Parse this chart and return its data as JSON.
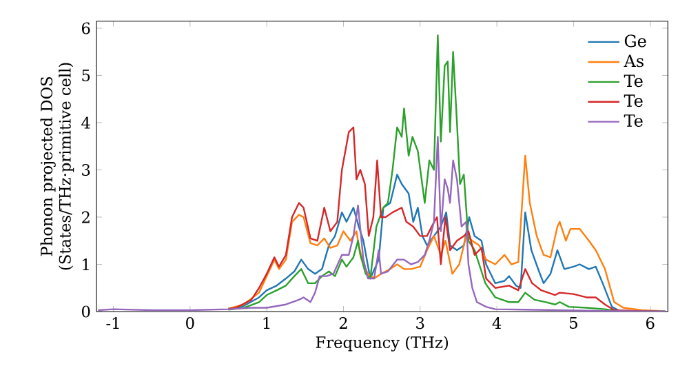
{
  "chart_data": {
    "type": "line",
    "xlabel": "Frequency (THz)",
    "ylabel": "Phonon projected DOS\n(States/THz·primitive cell)",
    "xlim": [
      -1.22,
      6.23
    ],
    "ylim": [
      0,
      6.15
    ],
    "xticks": [
      -1,
      0,
      1,
      2,
      3,
      4,
      5,
      6
    ],
    "yticks": [
      0,
      1,
      2,
      3,
      4,
      5,
      6
    ],
    "legend": "top right",
    "series": [
      {
        "name": "Ge",
        "color": "#1f77b4",
        "x": [
          0.5,
          0.7,
          0.9,
          1.0,
          1.13,
          1.25,
          1.36,
          1.45,
          1.54,
          1.63,
          1.72,
          1.81,
          1.89,
          1.98,
          2.04,
          2.13,
          2.2,
          2.26,
          2.35,
          2.46,
          2.52,
          2.61,
          2.7,
          2.76,
          2.85,
          2.91,
          2.97,
          3.03,
          3.09,
          3.18,
          3.27,
          3.34,
          3.39,
          3.48,
          3.57,
          3.64,
          3.71,
          3.8,
          3.86,
          3.98,
          4.1,
          4.16,
          4.25,
          4.31,
          4.37,
          4.45,
          4.55,
          4.61,
          4.7,
          4.79,
          4.88,
          5.0,
          5.08,
          5.2,
          5.29,
          5.38,
          5.5,
          5.59,
          5.8,
          6.2
        ],
        "values": [
          0.06,
          0.12,
          0.3,
          0.45,
          0.55,
          0.7,
          0.85,
          1.1,
          0.9,
          0.8,
          0.9,
          1.4,
          1.6,
          2.1,
          1.9,
          2.2,
          1.8,
          1.5,
          0.7,
          1.1,
          2.2,
          2.3,
          2.9,
          2.7,
          2.5,
          1.9,
          2.2,
          1.6,
          1.4,
          1.6,
          1.8,
          2.1,
          1.4,
          1.3,
          1.4,
          2.0,
          1.6,
          1.5,
          1.0,
          0.6,
          0.65,
          0.75,
          0.55,
          0.5,
          2.1,
          1.3,
          0.85,
          0.6,
          0.8,
          1.3,
          0.9,
          0.95,
          1.0,
          0.9,
          0.95,
          0.6,
          0.1,
          0.02,
          0.01,
          0.0
        ]
      },
      {
        "name": "As",
        "color": "#ff7f0e",
        "x": [
          0.5,
          0.7,
          0.9,
          1.0,
          1.1,
          1.16,
          1.25,
          1.33,
          1.42,
          1.48,
          1.57,
          1.66,
          1.75,
          1.83,
          1.92,
          2.0,
          2.09,
          2.17,
          2.2,
          2.26,
          2.32,
          2.4,
          2.49,
          2.61,
          2.7,
          2.79,
          2.88,
          3.0,
          3.09,
          3.18,
          3.27,
          3.33,
          3.42,
          3.51,
          3.6,
          3.68,
          3.77,
          3.86,
          3.98,
          4.1,
          4.19,
          4.28,
          4.37,
          4.43,
          4.52,
          4.61,
          4.7,
          4.79,
          4.82,
          4.9,
          4.96,
          5.08,
          5.2,
          5.29,
          5.41,
          5.53,
          5.65,
          5.89,
          6.12
        ],
        "values": [
          0.06,
          0.15,
          0.4,
          0.75,
          1.1,
          0.9,
          1.1,
          1.9,
          2.05,
          2.0,
          1.45,
          1.4,
          1.55,
          1.35,
          1.4,
          1.7,
          1.5,
          1.7,
          1.4,
          1.0,
          0.8,
          0.7,
          0.8,
          0.9,
          1.0,
          0.9,
          0.9,
          0.95,
          1.3,
          1.6,
          1.2,
          1.5,
          0.8,
          1.0,
          1.6,
          1.5,
          1.4,
          1.1,
          1.0,
          1.2,
          1.0,
          1.05,
          3.3,
          2.3,
          1.6,
          1.2,
          1.15,
          1.8,
          1.9,
          1.5,
          1.75,
          1.75,
          1.5,
          1.3,
          0.9,
          0.2,
          0.08,
          0.03,
          0.01
        ]
      },
      {
        "name": "Te",
        "color": "#2ca02c",
        "x": [
          0.5,
          0.7,
          0.9,
          1.0,
          1.13,
          1.25,
          1.36,
          1.45,
          1.54,
          1.63,
          1.72,
          1.81,
          1.89,
          1.98,
          2.04,
          2.13,
          2.19,
          2.22,
          2.29,
          2.35,
          2.43,
          2.52,
          2.58,
          2.64,
          2.7,
          2.76,
          2.79,
          2.85,
          2.9,
          2.97,
          3.06,
          3.12,
          3.18,
          3.23,
          3.27,
          3.32,
          3.36,
          3.39,
          3.43,
          3.48,
          3.52,
          3.57,
          3.63,
          3.71,
          3.77,
          3.85,
          3.98,
          4.16,
          4.28,
          4.37,
          4.49,
          4.64,
          4.76,
          4.82,
          4.94,
          5.17,
          5.41,
          5.53,
          5.8,
          6.2
        ],
        "values": [
          0.04,
          0.08,
          0.2,
          0.35,
          0.45,
          0.55,
          0.75,
          0.9,
          0.6,
          0.6,
          0.75,
          0.85,
          0.75,
          1.1,
          0.95,
          1.15,
          1.5,
          1.2,
          0.8,
          0.7,
          1.8,
          2.2,
          2.3,
          3.0,
          3.9,
          3.7,
          4.3,
          3.3,
          3.7,
          3.4,
          2.3,
          3.2,
          3.0,
          5.85,
          3.6,
          5.2,
          5.3,
          3.8,
          5.5,
          4.0,
          2.7,
          2.9,
          1.5,
          1.3,
          1.0,
          0.6,
          0.3,
          0.2,
          0.2,
          0.4,
          0.25,
          0.2,
          0.15,
          0.2,
          0.1,
          0.08,
          0.05,
          0.02,
          0.01,
          0.0
        ]
      },
      {
        "name": "Te",
        "color": "#d62728",
        "x": [
          0.5,
          0.6,
          0.8,
          0.9,
          1.0,
          1.1,
          1.16,
          1.25,
          1.33,
          1.42,
          1.48,
          1.57,
          1.66,
          1.75,
          1.83,
          1.92,
          1.98,
          2.07,
          2.13,
          2.17,
          2.22,
          2.28,
          2.33,
          2.39,
          2.44,
          2.49,
          2.55,
          2.64,
          2.76,
          2.82,
          2.91,
          3.0,
          3.09,
          3.15,
          3.22,
          3.27,
          3.33,
          3.39,
          3.48,
          3.57,
          3.63,
          3.71,
          3.8,
          3.86,
          3.98,
          4.16,
          4.28,
          4.37,
          4.46,
          4.58,
          4.76,
          4.82,
          5.0,
          5.17,
          5.29,
          5.41,
          5.53,
          5.8,
          6.2
        ],
        "values": [
          0.06,
          0.08,
          0.25,
          0.5,
          0.8,
          1.15,
          0.95,
          1.2,
          2.0,
          2.3,
          2.2,
          1.55,
          1.5,
          2.2,
          1.7,
          1.9,
          3.0,
          3.8,
          3.9,
          2.8,
          3.0,
          2.7,
          1.6,
          2.0,
          3.2,
          2.0,
          2.0,
          2.1,
          2.2,
          1.9,
          1.8,
          1.6,
          1.6,
          1.8,
          2.0,
          1.0,
          2.0,
          1.3,
          1.5,
          1.6,
          1.7,
          1.2,
          1.35,
          0.7,
          0.5,
          0.55,
          0.45,
          0.9,
          0.6,
          0.45,
          0.35,
          0.4,
          0.37,
          0.3,
          0.3,
          0.15,
          0.03,
          0.01,
          0.0
        ]
      },
      {
        "name": "Te",
        "color": "#9467bd",
        "x": [
          -1.2,
          -1,
          -0.5,
          0,
          0.5,
          0.8,
          1.0,
          1.25,
          1.42,
          1.48,
          1.57,
          1.63,
          1.69,
          1.78,
          1.87,
          1.98,
          2.07,
          2.13,
          2.19,
          2.26,
          2.32,
          2.4,
          2.46,
          2.49,
          2.58,
          2.7,
          2.79,
          2.88,
          2.97,
          3.06,
          3.12,
          3.18,
          3.23,
          3.27,
          3.32,
          3.36,
          3.39,
          3.43,
          3.48,
          3.54,
          3.6,
          3.63,
          3.68,
          3.74,
          3.86,
          3.98,
          4.37,
          4.82,
          5.41,
          6.2
        ],
        "values": [
          0.03,
          0.05,
          0.03,
          0.03,
          0.05,
          0.08,
          0.08,
          0.15,
          0.25,
          0.3,
          0.2,
          0.4,
          0.75,
          0.75,
          0.8,
          1.2,
          1.2,
          1.6,
          2.25,
          1.1,
          0.7,
          0.7,
          1.3,
          0.8,
          0.85,
          1.1,
          1.1,
          1.0,
          1.05,
          1.2,
          1.5,
          1.9,
          3.7,
          1.7,
          2.8,
          2.6,
          2.3,
          3.2,
          2.8,
          1.8,
          1.9,
          1.0,
          0.5,
          0.2,
          0.1,
          0.05,
          0.04,
          0.03,
          0.01,
          0.0
        ]
      }
    ]
  }
}
